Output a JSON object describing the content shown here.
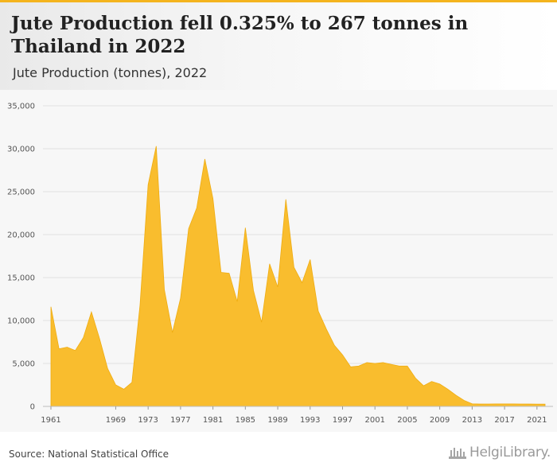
{
  "header": {
    "title": "Jute Production fell 0.325% to 267 tonnes in Thailand in 2022",
    "subtitle": "Jute Production (tonnes), 2022"
  },
  "footer": {
    "source": "Source: National Statistical Office",
    "logo_text": "HelgiLibrary."
  },
  "colors": {
    "accent": "#f4b41e",
    "area_fill": "#f9bd2e",
    "grid": "#e2e2e2"
  },
  "chart_data": {
    "type": "area",
    "title": "Jute Production fell 0.325% to 267 tonnes in Thailand in 2022",
    "subtitle": "Jute Production (tonnes), 2022",
    "xlabel": "",
    "ylabel": "",
    "ylim": [
      0,
      35000
    ],
    "xlim": [
      1961,
      2022
    ],
    "grid": true,
    "legend": "none",
    "y_ticks": [
      0,
      5000,
      10000,
      15000,
      20000,
      25000,
      30000,
      35000
    ],
    "y_tick_labels": [
      "0",
      "5,000",
      "10,000",
      "15,000",
      "20,000",
      "25,000",
      "30,000",
      "35,000"
    ],
    "x_ticks": [
      1961,
      1969,
      1973,
      1977,
      1981,
      1985,
      1989,
      1993,
      1997,
      2001,
      2005,
      2009,
      2013,
      2017,
      2021
    ],
    "x_tick_labels": [
      "1961",
      "1969",
      "1973",
      "1977",
      "1981",
      "1985",
      "1989",
      "1993",
      "1997",
      "2001",
      "2005",
      "2009",
      "2013",
      "2017",
      "2021"
    ],
    "series": [
      {
        "x": [
          1961,
          1962,
          1963,
          1964,
          1965,
          1966,
          1967,
          1968,
          1969,
          1970,
          1971,
          1972,
          1973,
          1974,
          1975,
          1976,
          1977,
          1978,
          1979,
          1980,
          1981,
          1982,
          1983,
          1984,
          1985,
          1986,
          1987,
          1988,
          1989,
          1990,
          1991,
          1992,
          1993,
          1994,
          1995,
          1996,
          1997,
          1998,
          1999,
          2000,
          2001,
          2002,
          2003,
          2004,
          2005,
          2006,
          2007,
          2008,
          2009,
          2010,
          2011,
          2012,
          2013,
          2014,
          2015,
          2016,
          2017,
          2018,
          2019,
          2020,
          2021,
          2022
        ],
        "values": [
          11600,
          6700,
          6900,
          6500,
          8000,
          11000,
          7900,
          4400,
          2500,
          2000,
          2800,
          11800,
          25800,
          30300,
          13600,
          8600,
          12600,
          20700,
          23100,
          28800,
          24200,
          15600,
          15500,
          12200,
          20800,
          13500,
          9800,
          16600,
          13900,
          24100,
          16200,
          14400,
          17100,
          11100,
          9000,
          7100,
          6000,
          4600,
          4700,
          5100,
          5000,
          5100,
          4900,
          4700,
          4700,
          3300,
          2400,
          2900,
          2600,
          2000,
          1300,
          700,
          300,
          270,
          280,
          290,
          290,
          290,
          280,
          270,
          268,
          267
        ]
      }
    ]
  }
}
